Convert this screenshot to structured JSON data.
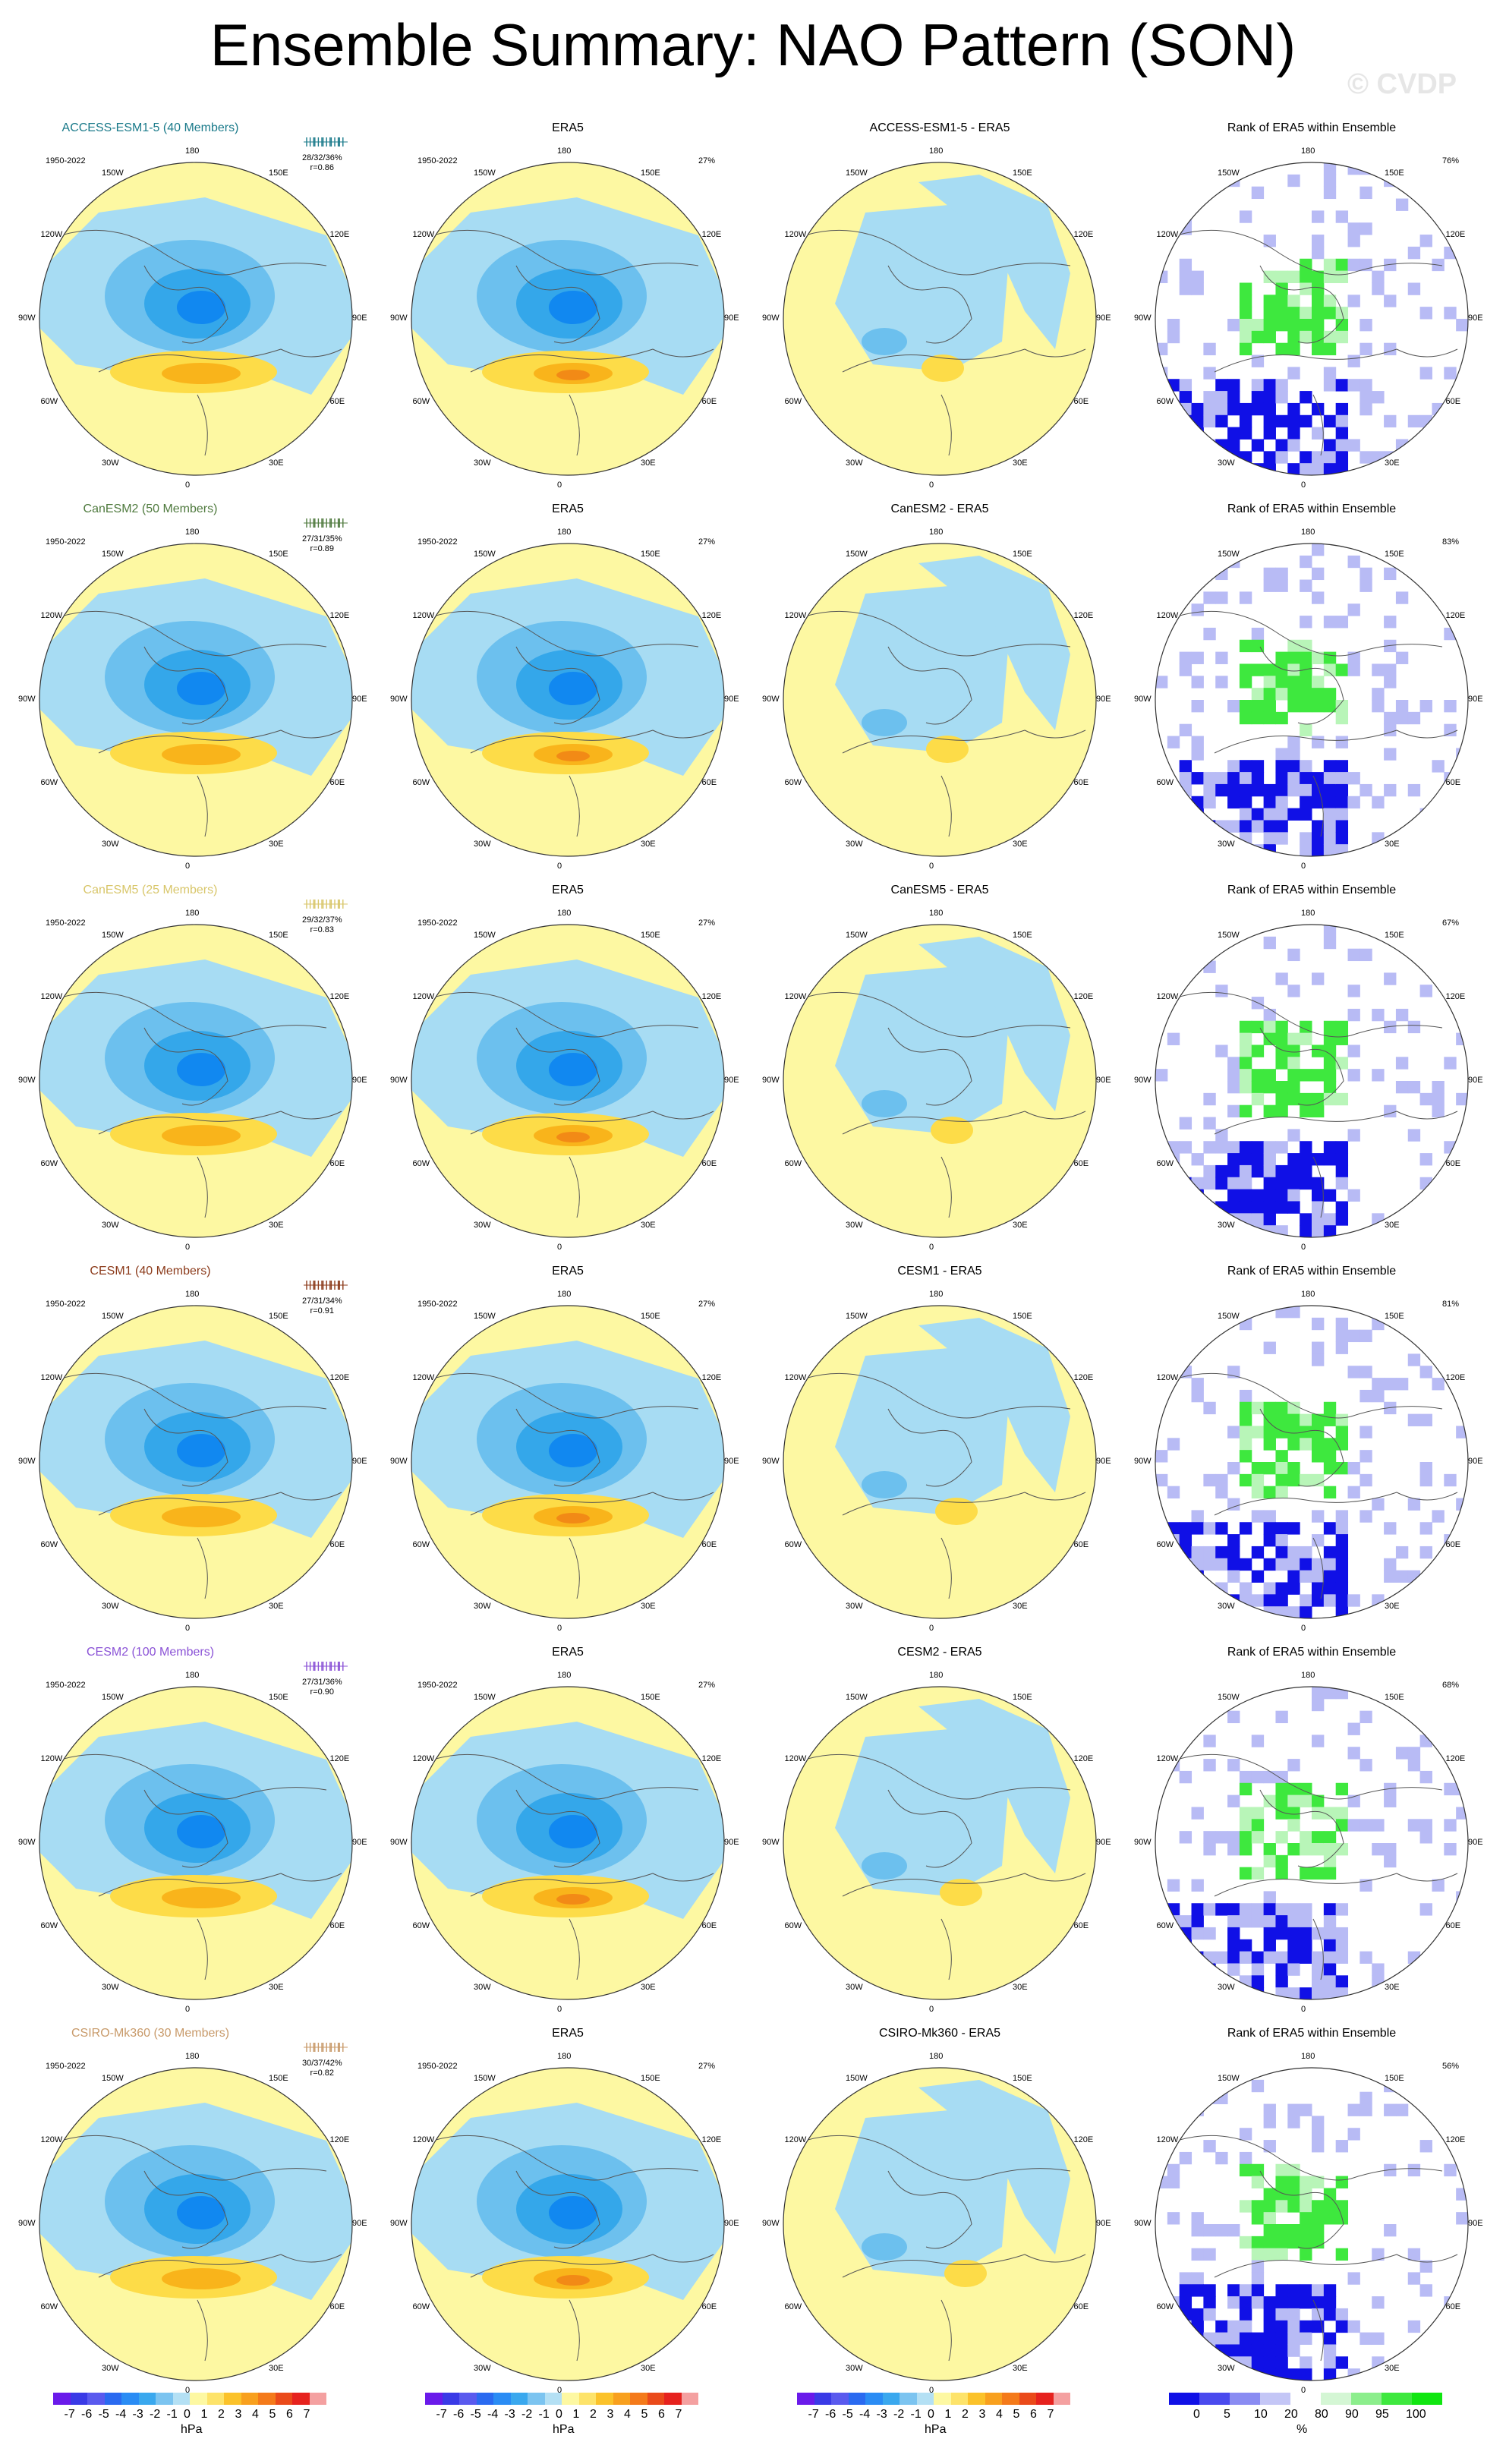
{
  "title": "Ensemble Summary: NAO Pattern (SON)",
  "watermark": "© CVDP",
  "period": "1950-2022",
  "obs_pct": "27%",
  "lon_labels": [
    "180",
    "150E",
    "120E",
    "90E",
    "60E",
    "30E",
    "0",
    "30W",
    "60W",
    "90W",
    "120W",
    "150W"
  ],
  "colors": {
    "neutral": "#fdf8a2",
    "neg1": "#a7dcf3",
    "neg2": "#6cc0ee",
    "neg3": "#34a7ea",
    "neg4": "#1188f0",
    "pos1": "#fddc48",
    "pos2": "#f9b41b",
    "pos3": "#f28a16",
    "rank_low": "#1010e6",
    "rank_mid": "#b8bbf5",
    "rank_high": "#3ee83e",
    "rank_mid2": "#b8f5b8",
    "ens_title_colors": [
      "#1a7a8a",
      "#4f7a3e",
      "#d8c66a",
      "#8b3a1a",
      "#8a52d6",
      "#c89a6a"
    ]
  },
  "rows": [
    {
      "model": "ACCESS-ESM1-5 (40 Members)",
      "diff_title": "ACCESS-ESM1-5 - ERA5",
      "stats": "28/32/36%",
      "r": "r=0.86",
      "rank_pct": "76%"
    },
    {
      "model": "CanESM2 (50 Members)",
      "diff_title": "CanESM2 - ERA5",
      "stats": "27/31/35%",
      "r": "r=0.89",
      "rank_pct": "83%"
    },
    {
      "model": "CanESM5 (25 Members)",
      "diff_title": "CanESM5 - ERA5",
      "stats": "29/32/37%",
      "r": "r=0.83",
      "rank_pct": "67%"
    },
    {
      "model": "CESM1 (40 Members)",
      "diff_title": "CESM1 - ERA5",
      "stats": "27/31/34%",
      "r": "r=0.91",
      "rank_pct": "81%"
    },
    {
      "model": "CESM2 (100 Members)",
      "diff_title": "CESM2 - ERA5",
      "stats": "27/31/36%",
      "r": "r=0.90",
      "rank_pct": "68%"
    },
    {
      "model": "CSIRO-Mk360 (30 Members)",
      "diff_title": "CSIRO-Mk360 - ERA5",
      "stats": "30/37/42%",
      "r": "r=0.82",
      "rank_pct": "56%"
    }
  ],
  "obs_title": "ERA5",
  "rank_title": "Rank of ERA5 within Ensemble",
  "colorbar_hpa": {
    "unit": "hPa",
    "ticks": [
      "-7",
      "-6",
      "-5",
      "-4",
      "-3",
      "-2",
      "-1",
      "0",
      "1",
      "2",
      "3",
      "4",
      "5",
      "6",
      "7"
    ],
    "colors": [
      "#6a1aea",
      "#3a3ae6",
      "#5a5aee",
      "#2a6af0",
      "#2a8cf4",
      "#3aa8ee",
      "#7cc4f0",
      "#b4e0f4",
      "#fdf8a2",
      "#fde36a",
      "#fbc22a",
      "#f8a01e",
      "#f47a1a",
      "#ea4a1a",
      "#e6221e",
      "#f4a0a0"
    ]
  },
  "colorbar_rank": {
    "unit": "%",
    "ticks": [
      "0",
      "5",
      "10",
      "20",
      "80",
      "90",
      "95",
      "100"
    ],
    "colors": [
      "#1010e6",
      "#4a4aee",
      "#8a8cf2",
      "#c4c6f6",
      "#ffffff",
      "#d4f6d4",
      "#8cee8c",
      "#3ee83e",
      "#10e610"
    ]
  }
}
